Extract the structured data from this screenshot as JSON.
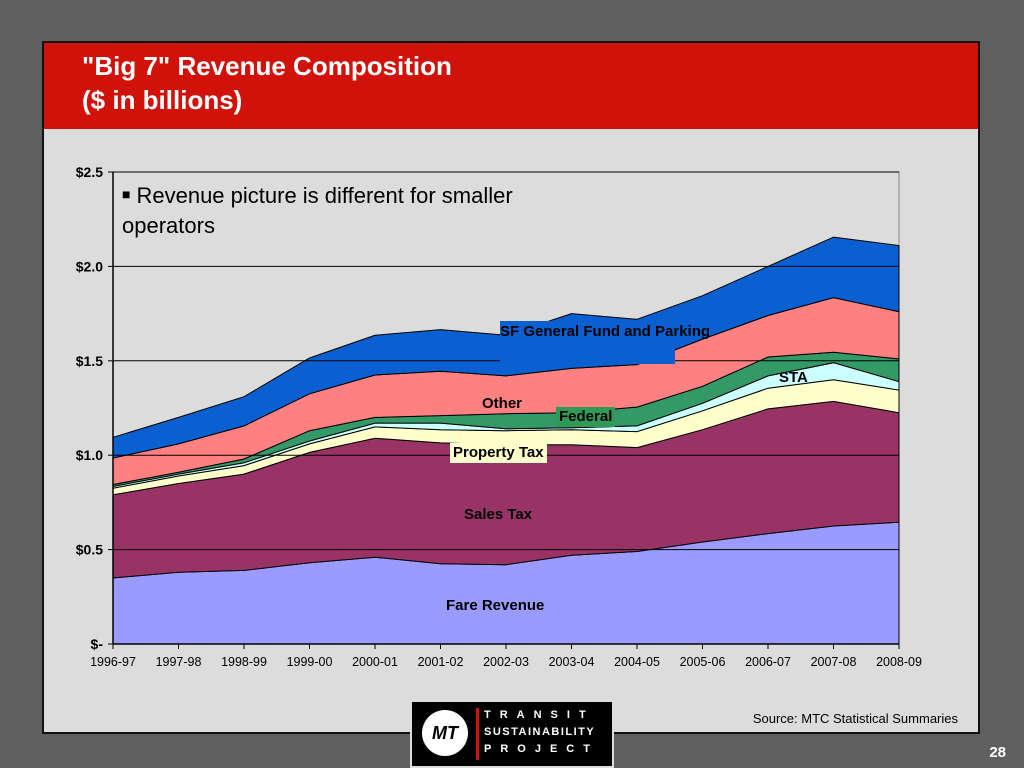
{
  "slide": {
    "title_line1": "\"Big 7\" Revenue Composition",
    "title_line2": "($ in billions)",
    "bullet": "Revenue picture is different for smaller operators",
    "source": "Source: MTC Statistical Summaries",
    "page_number": "28",
    "logo": {
      "line1": "TRANSIT",
      "line2": "SUSTAINABILITY",
      "line3": "PROJECT",
      "mark": "MT"
    }
  },
  "labels": {
    "sf": "SF General Fund and Parking",
    "sta": "STA",
    "other": "Other",
    "federal": "Federal",
    "property": "Property Tax",
    "sales": "Sales Tax",
    "fare": "Fare Revenue"
  },
  "colors": {
    "background": "#5f5f5f",
    "slide": "#dcdcdc",
    "banner": "#d0120a",
    "plot": "#dcdcdc"
  },
  "chart_data": {
    "type": "area",
    "stacked": true,
    "categories": [
      "1996-97",
      "1997-98",
      "1998-99",
      "1999-00",
      "2000-01",
      "2001-02",
      "2002-03",
      "2003-04",
      "2004-05",
      "2005-06",
      "2006-07",
      "2007-08",
      "2008-09"
    ],
    "yticks": [
      "$-",
      "$0.5",
      "$1.0",
      "$1.5",
      "$2.0",
      "$2.5"
    ],
    "ylim": [
      0,
      2.5
    ],
    "grid": true,
    "series": [
      {
        "name": "Fare Revenue",
        "color": "#9b9bff",
        "values": [
          0.35,
          0.38,
          0.39,
          0.43,
          0.46,
          0.425,
          0.42,
          0.47,
          0.49,
          0.54,
          0.585,
          0.625,
          0.645
        ]
      },
      {
        "name": "Sales Tax",
        "color": "#993366",
        "values": [
          0.44,
          0.47,
          0.51,
          0.585,
          0.63,
          0.64,
          0.635,
          0.585,
          0.55,
          0.595,
          0.66,
          0.66,
          0.58
        ]
      },
      {
        "name": "Property Tax",
        "color": "#ffffcc",
        "values": [
          0.035,
          0.04,
          0.045,
          0.045,
          0.06,
          0.07,
          0.075,
          0.08,
          0.085,
          0.1,
          0.11,
          0.115,
          0.12
        ]
      },
      {
        "name": "STA",
        "color": "#ccffff",
        "values": [
          0.01,
          0.01,
          0.015,
          0.015,
          0.02,
          0.035,
          0.01,
          0.01,
          0.03,
          0.04,
          0.065,
          0.09,
          0.045
        ]
      },
      {
        "name": "Federal",
        "color": "#339966",
        "values": [
          0.01,
          0.01,
          0.02,
          0.055,
          0.03,
          0.04,
          0.08,
          0.08,
          0.1,
          0.09,
          0.1,
          0.055,
          0.12
        ]
      },
      {
        "name": "Other",
        "color": "#ff8080",
        "values": [
          0.14,
          0.15,
          0.175,
          0.195,
          0.225,
          0.235,
          0.2,
          0.235,
          0.225,
          0.25,
          0.22,
          0.29,
          0.25
        ]
      },
      {
        "name": "SF General Fund and Parking",
        "color": "#0a60d0",
        "values": [
          0.11,
          0.14,
          0.155,
          0.19,
          0.21,
          0.22,
          0.215,
          0.29,
          0.24,
          0.23,
          0.26,
          0.32,
          0.35
        ]
      }
    ]
  }
}
